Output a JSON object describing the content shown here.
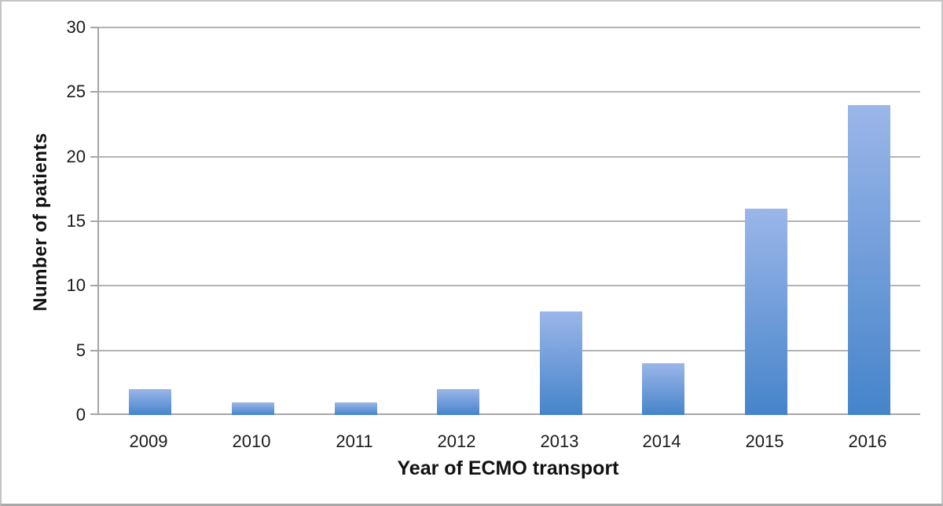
{
  "figure": {
    "kind": "static-bar-chart-figure"
  },
  "chart_data": {
    "type": "bar",
    "title": "",
    "xlabel": "Year of ECMO transport",
    "ylabel": "Number of patients",
    "categories": [
      "2009",
      "2010",
      "2011",
      "2012",
      "2013",
      "2014",
      "2015",
      "2016"
    ],
    "values": [
      2,
      1,
      1,
      2,
      8,
      4,
      16,
      24
    ],
    "ylim": [
      0,
      30
    ],
    "yticks": [
      0,
      5,
      10,
      15,
      20,
      25,
      30
    ],
    "grid": true,
    "legend": "none",
    "colors": {
      "bar_gradient_top": "#9bb6e9",
      "bar_gradient_bottom": "#4584ca",
      "gridline": "#b3b3b3",
      "axis": "#a6a6a6",
      "text": "#1a1a1a",
      "frame_border": "#c4c4c4"
    }
  }
}
